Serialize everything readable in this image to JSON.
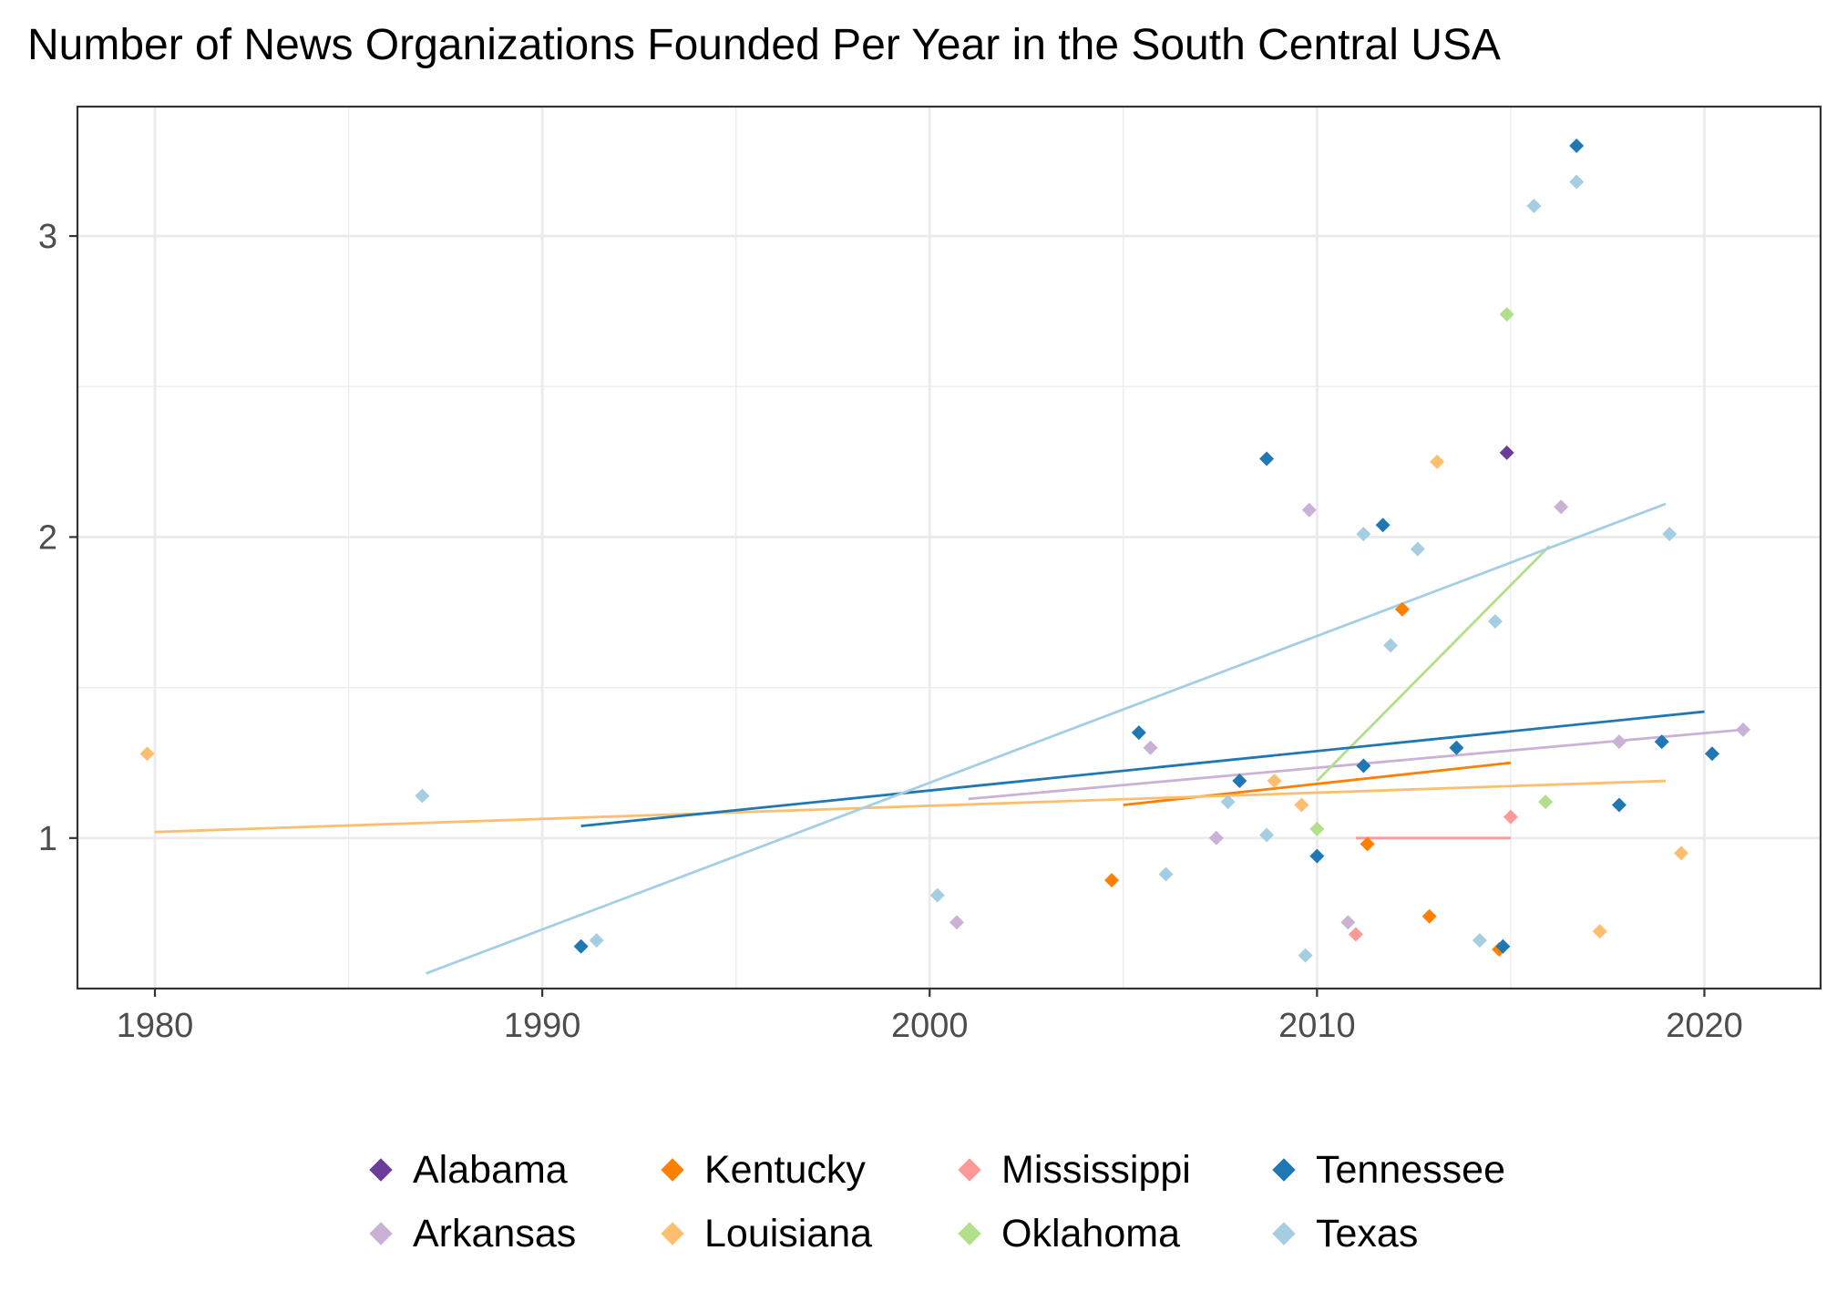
{
  "chart_data": {
    "type": "scatter",
    "title": "Number of News Organizations Founded Per Year in the South Central USA",
    "xlabel": "",
    "ylabel": "",
    "xlim": [
      1978,
      2023
    ],
    "ylim": [
      0.5,
      3.43
    ],
    "x_ticks": [
      1980,
      1990,
      2000,
      2010,
      2020
    ],
    "y_ticks": [
      1,
      2,
      3
    ],
    "grid": true,
    "legend_position": "bottom",
    "series": [
      {
        "name": "Alabama",
        "color": "#6a3d9a",
        "points": [
          [
            2014.9,
            2.28
          ]
        ],
        "trend": null
      },
      {
        "name": "Arkansas",
        "color": "#cab2d6",
        "points": [
          [
            2000.7,
            0.72
          ],
          [
            2005.7,
            1.3
          ],
          [
            2007.4,
            1.0
          ],
          [
            2009.8,
            2.09
          ],
          [
            2010.8,
            0.72
          ],
          [
            2016.3,
            2.1
          ],
          [
            2017.8,
            1.32
          ],
          [
            2021.0,
            1.36
          ]
        ],
        "trend": [
          [
            2001.0,
            1.13
          ],
          [
            2021.0,
            1.36
          ]
        ]
      },
      {
        "name": "Kentucky",
        "color": "#ff7f00",
        "points": [
          [
            2004.7,
            0.86
          ],
          [
            2011.3,
            0.98
          ],
          [
            2012.2,
            1.76
          ],
          [
            2012.9,
            0.74
          ],
          [
            2014.7,
            0.63
          ]
        ],
        "trend": [
          [
            2005.0,
            1.11
          ],
          [
            2015.0,
            1.25
          ]
        ]
      },
      {
        "name": "Louisiana",
        "color": "#fdbf6f",
        "points": [
          [
            1979.8,
            1.28
          ],
          [
            2008.9,
            1.19
          ],
          [
            2009.6,
            1.11
          ],
          [
            2013.1,
            2.25
          ],
          [
            2017.3,
            0.69
          ],
          [
            2019.4,
            0.95
          ]
        ],
        "trend": [
          [
            1980.0,
            1.02
          ],
          [
            2019.0,
            1.19
          ]
        ]
      },
      {
        "name": "Mississippi",
        "color": "#fb9a99",
        "points": [
          [
            2011.0,
            0.68
          ],
          [
            2015.0,
            1.07
          ]
        ],
        "trend": [
          [
            2011.0,
            1.0
          ],
          [
            2015.0,
            1.0
          ]
        ]
      },
      {
        "name": "Oklahoma",
        "color": "#b2df8a",
        "points": [
          [
            2010.0,
            1.03
          ],
          [
            2014.9,
            2.74
          ],
          [
            2015.9,
            1.12
          ]
        ],
        "trend": [
          [
            2010.0,
            1.19
          ],
          [
            2016.0,
            1.97
          ]
        ]
      },
      {
        "name": "Tennessee",
        "color": "#1f78b4",
        "points": [
          [
            1991.0,
            0.64
          ],
          [
            2005.4,
            1.35
          ],
          [
            2008.0,
            1.19
          ],
          [
            2008.7,
            2.26
          ],
          [
            2010.0,
            0.94
          ],
          [
            2011.2,
            1.24
          ],
          [
            2011.7,
            2.04
          ],
          [
            2013.6,
            1.3
          ],
          [
            2014.8,
            0.64
          ],
          [
            2016.7,
            3.3
          ],
          [
            2017.8,
            1.11
          ],
          [
            2018.9,
            1.32
          ],
          [
            2020.2,
            1.28
          ]
        ],
        "trend": [
          [
            1991.0,
            1.04
          ],
          [
            2020.0,
            1.42
          ]
        ]
      },
      {
        "name": "Texas",
        "color": "#a6cee3",
        "points": [
          [
            1986.9,
            1.14
          ],
          [
            1991.4,
            0.66
          ],
          [
            2000.2,
            0.81
          ],
          [
            2006.1,
            0.88
          ],
          [
            2007.7,
            1.12
          ],
          [
            2008.7,
            1.01
          ],
          [
            2009.7,
            0.61
          ],
          [
            2011.2,
            2.01
          ],
          [
            2011.9,
            1.64
          ],
          [
            2012.6,
            1.96
          ],
          [
            2014.2,
            0.66
          ],
          [
            2014.6,
            1.72
          ],
          [
            2015.6,
            3.1
          ],
          [
            2016.7,
            3.18
          ],
          [
            2019.1,
            2.01
          ]
        ],
        "trend": [
          [
            1987.0,
            0.55
          ],
          [
            2019.0,
            2.11
          ]
        ]
      }
    ]
  }
}
